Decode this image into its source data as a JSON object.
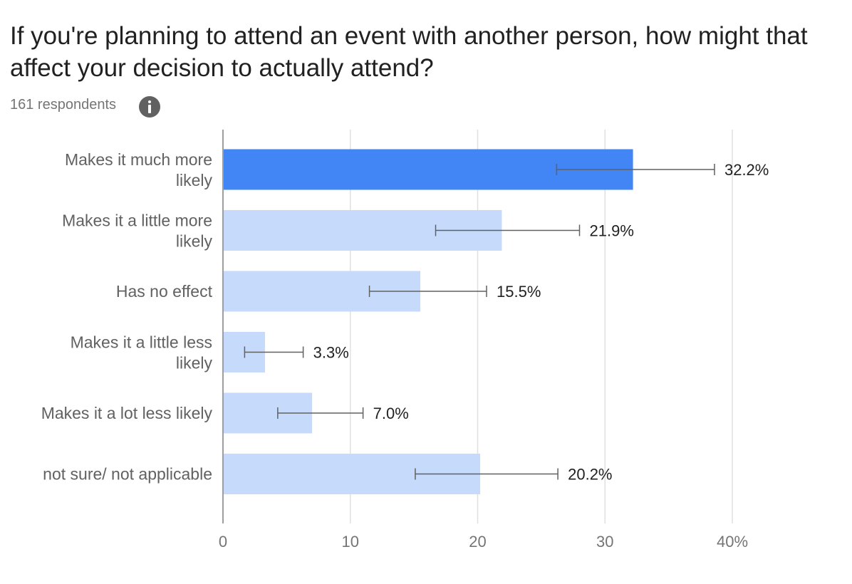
{
  "header": {
    "title": "If you're planning to attend an event with another person, how might that affect your decision to actually attend?",
    "subtitle": "161 respondents",
    "info_icon": "info-icon"
  },
  "colors": {
    "highlight_bar": "#4285f4",
    "bar": "#c6dafc",
    "error_bar": "#616161",
    "grid": "#e0e0e0",
    "axis": "#9e9e9e"
  },
  "chart_data": {
    "type": "bar",
    "orientation": "horizontal",
    "title": "If you're planning to attend an event with another person, how might that affect your decision to actually attend?",
    "subtitle": "161 respondents",
    "categories": [
      [
        "Makes it much more",
        "likely"
      ],
      [
        "Makes it a little more",
        "likely"
      ],
      [
        "Has no effect"
      ],
      [
        "Makes it a little less",
        "likely"
      ],
      [
        "Makes it a lot less likely"
      ],
      [
        "not sure/ not applicable"
      ]
    ],
    "values": [
      32.2,
      21.9,
      15.5,
      3.3,
      7.0,
      20.2
    ],
    "value_labels": [
      "32.2%",
      "21.9%",
      "15.5%",
      "3.3%",
      "7.0%",
      "20.2%"
    ],
    "error_bars": [
      [
        26.2,
        38.6
      ],
      [
        16.7,
        28.0
      ],
      [
        11.5,
        20.7
      ],
      [
        1.7,
        6.3
      ],
      [
        4.3,
        11.0
      ],
      [
        15.1,
        26.3
      ]
    ],
    "highlighted_index": 0,
    "xlim": [
      0,
      40
    ],
    "xticks": [
      0,
      10,
      20,
      30,
      40
    ],
    "xtick_labels": [
      "0",
      "10",
      "20",
      "30",
      "40%"
    ],
    "grid": true
  }
}
